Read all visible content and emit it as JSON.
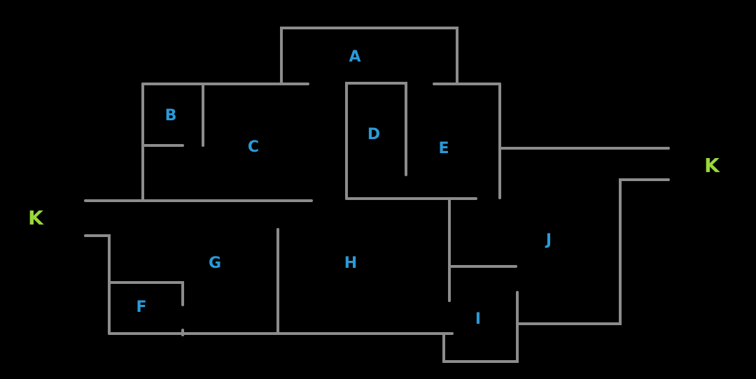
{
  "colors": {
    "background": "#000000",
    "wall": "#8c8c8c",
    "room_label": "#2a9ad8",
    "exit_label": "#9ad83a"
  },
  "rooms": {
    "a": "A",
    "b": "B",
    "c": "C",
    "d": "D",
    "e": "E",
    "f": "F",
    "g": "G",
    "h": "H",
    "i": "I",
    "j": "J"
  },
  "exits": {
    "left": "K",
    "right": "K"
  }
}
